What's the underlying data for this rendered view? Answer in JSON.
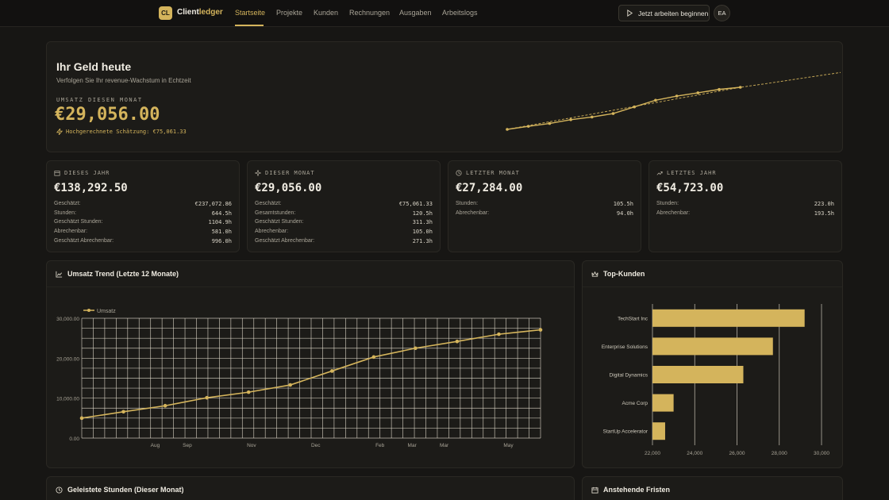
{
  "nav": {
    "logo_badge": "CL",
    "logo_text_a": "Client",
    "logo_text_b": "ledger",
    "items": [
      "Startseite",
      "Projekte",
      "Kunden",
      "Rechnungen",
      "Ausgaben",
      "Arbeitslogs"
    ],
    "work_button": "Jetzt arbeiten beginnen",
    "avatar": "EA"
  },
  "hero": {
    "title": "Ihr Geld heute",
    "subtitle": "Verfolgen Sie Ihr revenue-Wachstum in Echtzeit",
    "label": "UMSATZ DIESEN MONAT",
    "value": "€29,056.00",
    "projection": "Hochgerechnete Schätzung: €75,061.33"
  },
  "stats": [
    {
      "label": "DIESES JAHR",
      "icon": "calendar-icon",
      "value": "€138,292.50",
      "rows": [
        {
          "k": "Geschätzt:",
          "v": "€237,072.86"
        },
        {
          "k": "Stunden:",
          "v": "644.5h"
        },
        {
          "k": "Geschätzt Stunden:",
          "v": "1104.9h"
        },
        {
          "k": "Abrechenbar:",
          "v": "581.0h"
        },
        {
          "k": "Geschätzt Abrechenbar:",
          "v": "996.0h"
        }
      ]
    },
    {
      "label": "DIESER MONAT",
      "icon": "sparkle-icon",
      "value": "€29,056.00",
      "rows": [
        {
          "k": "Geschätzt:",
          "v": "€75,061.33"
        },
        {
          "k": "Gesamtstunden:",
          "v": "120.5h"
        },
        {
          "k": "Geschätzt Stunden:",
          "v": "311.3h"
        },
        {
          "k": "Abrechenbar:",
          "v": "105.0h"
        },
        {
          "k": "Geschätzt Abrechenbar:",
          "v": "271.3h"
        }
      ]
    },
    {
      "label": "LETZTER MONAT",
      "icon": "history-icon",
      "value": "€27,284.00",
      "rows": [
        {
          "k": "Stunden:",
          "v": "105.5h"
        },
        {
          "k": "Abrechenbar:",
          "v": "94.0h"
        }
      ]
    },
    {
      "label": "LETZTES JAHR",
      "icon": "trend-up-icon",
      "value": "€54,723.00",
      "rows": [
        {
          "k": "Stunden:",
          "v": "223.0h"
        },
        {
          "k": "Abrechenbar:",
          "v": "193.5h"
        }
      ]
    }
  ],
  "trend": {
    "title": "Umsatz Trend (Letzte 12 Monate)",
    "icon": "line-chart-icon"
  },
  "top_clients": {
    "title": "Top-Kunden",
    "icon": "crown-icon"
  },
  "bottom": {
    "hours_title": "Geleistete Stunden (Dieser Monat)",
    "deadlines_title": "Anstehende Fristen"
  },
  "colors": {
    "accent": "#d4b45c",
    "background": "#171614",
    "card": "#1c1b18"
  },
  "chart_data": [
    {
      "type": "line",
      "title": "Umsatz Trend (Letzte 12 Monate)",
      "legend": "top-left",
      "grid": true,
      "x_labels": [
        "",
        "Aug",
        "Sep",
        "",
        "Nov",
        "",
        "Dec",
        "",
        "Feb",
        "Mar",
        "Mar",
        "",
        "May",
        ""
      ],
      "series": [
        {
          "name": "Umsatz",
          "values": [
            5000,
            6600,
            8100,
            10100,
            11500,
            13300,
            16800,
            20300,
            22500,
            24200,
            26000,
            27100
          ]
        }
      ],
      "y_ticks": [
        "0.00",
        "10,000.00",
        "20,000.00",
        "30,000.00"
      ],
      "ylim": [
        0,
        30000
      ]
    },
    {
      "type": "bar",
      "orientation": "horizontal",
      "title": "Top-Kunden",
      "categories": [
        "TechStart Inc",
        "Enterprise Solutions",
        "Digital Dynamics",
        "Acme Corp",
        "StartUp Accelerator"
      ],
      "values": [
        29200,
        27700,
        26300,
        23000,
        22600
      ],
      "x_ticks": [
        "22,000",
        "24,000",
        "26,000",
        "28,000",
        "30,000"
      ],
      "xlim": [
        22000,
        30000
      ]
    },
    {
      "type": "line",
      "series": [
        {
          "values": [
            5000,
            6600,
            8100,
            10100,
            11500,
            13300,
            16800,
            20300,
            22500,
            24200,
            26000,
            27100
          ]
        },
        {
          "values": [
            27100,
            29000,
            31000,
            33000,
            35000,
            37000
          ]
        }
      ]
    }
  ]
}
